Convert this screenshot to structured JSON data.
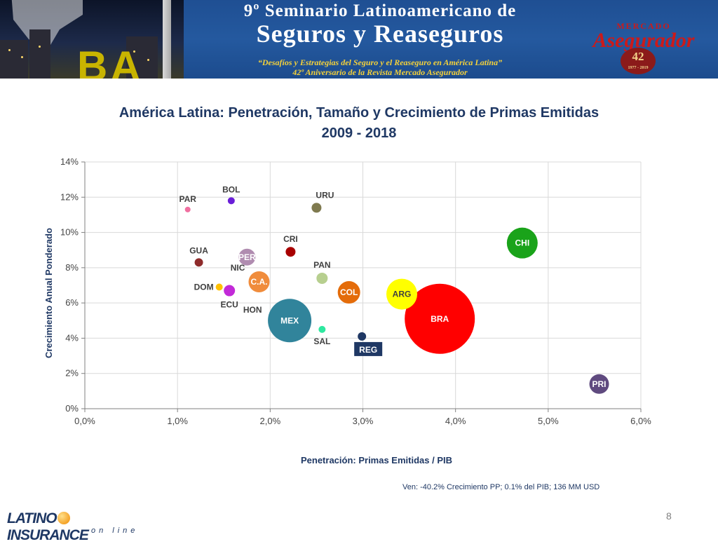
{
  "banner": {
    "title_line1": "9º Seminario Latinoamericano de",
    "title_line2": "Seguros y Reaseguros",
    "subtitle_line1": "“Desafíos y Estrategias del Seguro y el Reaseguro en América Latina”",
    "subtitle_line2": "42º Aniversario de la Revista Mercado Asegurador",
    "city_letters": "BA",
    "brand_small": "MERCADO",
    "brand_large": "Asegurador",
    "seal_number": "42",
    "seal_years": "1977 - 2019"
  },
  "slide": {
    "title_line1": "América Latina: Penetración, Tamaño y Crecimiento de Primas Emitidas",
    "title_line2": "2009 - 2018",
    "note": "Ven: -40.2% Crecimiento PP; 0.1% del PIB; 136 MM USD",
    "page_number": "8"
  },
  "footer": {
    "logo_word1": "LATINO",
    "logo_word2": "INSURANCE",
    "logo_sub": "on line"
  },
  "chart_data": {
    "type": "scatter",
    "title": "",
    "xlabel": "Penetración: Primas Emitidas / PIB",
    "ylabel": "Crecimiento Anual Ponderado",
    "xlim": [
      0,
      6
    ],
    "ylim": [
      0,
      14
    ],
    "x_ticks": [
      "0,0%",
      "1,0%",
      "2,0%",
      "3,0%",
      "4,0%",
      "5,0%",
      "6,0%"
    ],
    "y_ticks": [
      "0%",
      "2%",
      "4%",
      "6%",
      "8%",
      "10%",
      "12%",
      "14%"
    ],
    "grid": true,
    "bubble_size_meaning": "primas emitidas",
    "points": [
      {
        "label": "PAR",
        "x": 1.11,
        "y": 11.3,
        "size": 4,
        "color": "#f06fa0",
        "label_pos": "above",
        "label_color": "#404040"
      },
      {
        "label": "BOL",
        "x": 1.58,
        "y": 11.8,
        "size": 5,
        "color": "#6a1ed8",
        "label_pos": "above",
        "label_color": "#404040"
      },
      {
        "label": "URU",
        "x": 2.5,
        "y": 11.4,
        "size": 7,
        "color": "#7f7a4f",
        "label_pos": "above-right",
        "label_color": "#404040"
      },
      {
        "label": "CRI",
        "x": 2.22,
        "y": 8.9,
        "size": 7,
        "color": "#a80000",
        "label_pos": "above",
        "label_color": "#404040"
      },
      {
        "label": "GUA",
        "x": 1.23,
        "y": 8.3,
        "size": 6,
        "color": "#8e2b2b",
        "label_pos": "above",
        "label_color": "#404040"
      },
      {
        "label": "PER",
        "x": 1.75,
        "y": 8.6,
        "size": 12,
        "color": "#b08cb0",
        "label_pos": "inside",
        "label_color": "#ffffff"
      },
      {
        "label": "NIC",
        "x": 1.65,
        "y": 8.0,
        "size": 0,
        "color": "#ffffff",
        "label_pos": "inside",
        "label_color": "#404040"
      },
      {
        "label": "C.A.",
        "x": 1.88,
        "y": 7.2,
        "size": 15,
        "color": "#f08c3c",
        "label_pos": "inside",
        "label_color": "#ffffff"
      },
      {
        "label": "PAN",
        "x": 2.56,
        "y": 7.4,
        "size": 8,
        "color": "#b7cf8f",
        "label_pos": "above",
        "label_color": "#404040"
      },
      {
        "label": "COL",
        "x": 2.85,
        "y": 6.6,
        "size": 16,
        "color": "#e46c0a",
        "label_pos": "inside",
        "label_color": "#ffffff"
      },
      {
        "label": "ARG",
        "x": 3.42,
        "y": 6.5,
        "size": 22,
        "color": "#ffff00",
        "label_pos": "inside",
        "label_color": "#404040"
      },
      {
        "label": "CHI",
        "x": 4.72,
        "y": 9.4,
        "size": 22,
        "color": "#1aa31a",
        "label_pos": "inside",
        "label_color": "#ffffff"
      },
      {
        "label": "DOM",
        "x": 1.45,
        "y": 6.9,
        "size": 5,
        "color": "#ffc000",
        "label_pos": "left",
        "label_color": "#404040"
      },
      {
        "label": "ECU",
        "x": 1.56,
        "y": 6.7,
        "size": 8,
        "color": "#c22ad8",
        "label_pos": "below",
        "label_color": "#404040"
      },
      {
        "label": "HON",
        "x": 1.81,
        "y": 5.6,
        "size": 0,
        "color": "#ffffff",
        "label_pos": "inside",
        "label_color": "#404040"
      },
      {
        "label": "MEX",
        "x": 2.21,
        "y": 5.0,
        "size": 31,
        "color": "#31849b",
        "label_pos": "inside",
        "label_color": "#ffffff"
      },
      {
        "label": "BRA",
        "x": 3.83,
        "y": 5.1,
        "size": 50,
        "color": "#ff0000",
        "label_pos": "inside",
        "label_color": "#ffffff"
      },
      {
        "label": "SAL",
        "x": 2.56,
        "y": 4.5,
        "size": 5,
        "color": "#2ee8a0",
        "label_pos": "below",
        "label_color": "#404040"
      },
      {
        "label": "REG",
        "x": 2.99,
        "y": 4.1,
        "size": 6,
        "color": "#1f3864",
        "label_pos": "box-below",
        "label_color": "#ffffff"
      },
      {
        "label": "PRI",
        "x": 5.55,
        "y": 1.4,
        "size": 14,
        "color": "#5f4a7f",
        "label_pos": "inside",
        "label_color": "#ffffff"
      }
    ]
  }
}
